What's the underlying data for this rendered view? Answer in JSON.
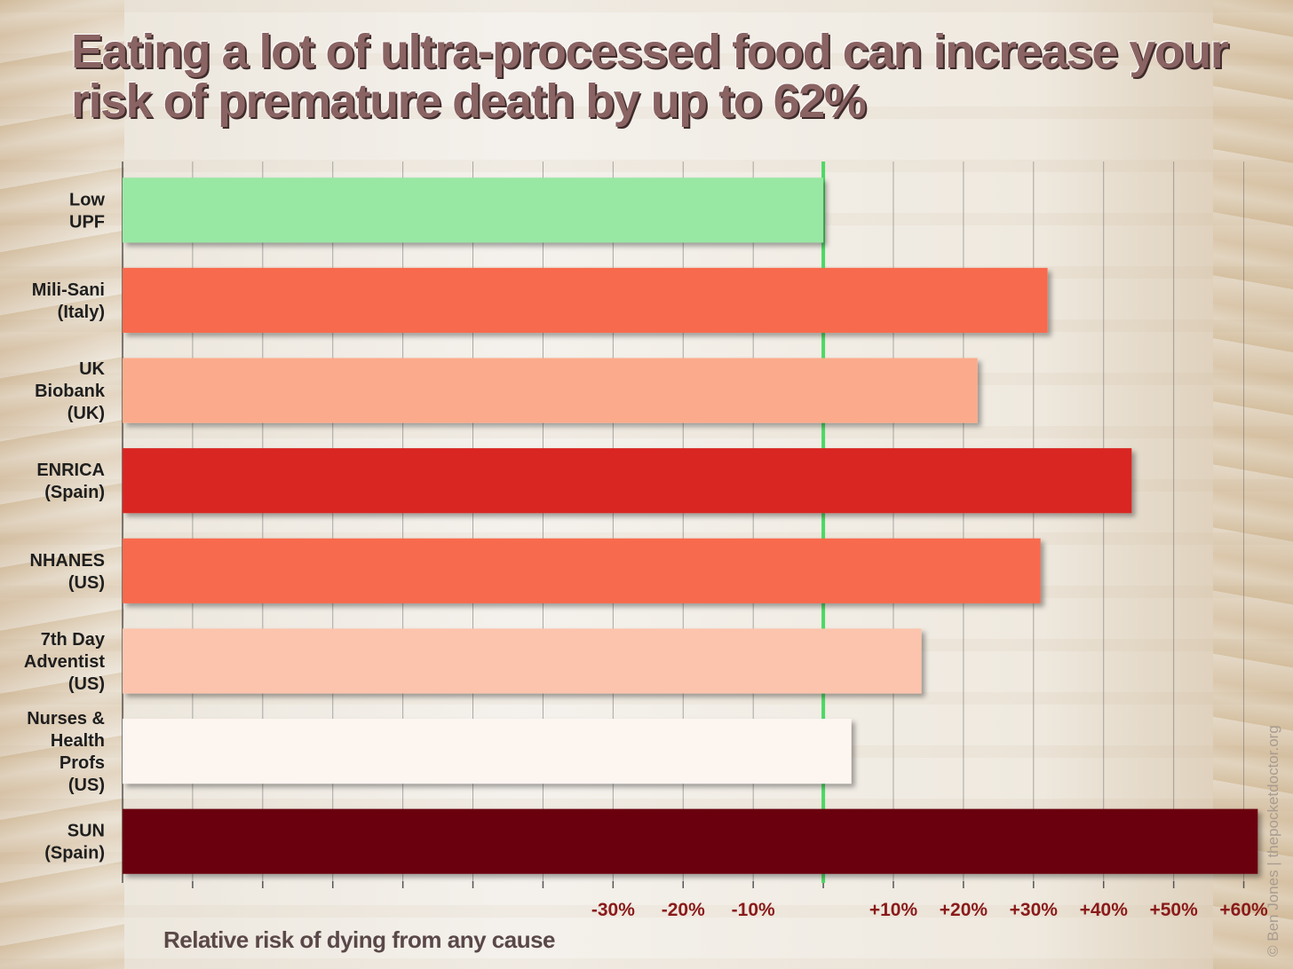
{
  "title": "Eating a lot of ultra-processed food can increase your risk of premature death by up to 62%",
  "credit": "© Ben Jones | thepocketdoctor.org",
  "chart_data": {
    "type": "bar",
    "orientation": "horizontal",
    "title": "Eating a lot of ultra-processed food can increase your risk of premature death by up to 62%",
    "xlabel": "Relative risk of dying from any cause",
    "ylabel": "",
    "xlim": [
      -100,
      65
    ],
    "baseline": 0,
    "baseline_color": "#4cd964",
    "grid": true,
    "tick_values": [
      -30,
      -20,
      -10,
      10,
      20,
      30,
      40,
      50,
      60
    ],
    "tick_labels": [
      "-30%",
      "-20%",
      "-10%",
      "+10%",
      "+20%",
      "+30%",
      "+40%",
      "+50%",
      "+60%"
    ],
    "categories": [
      [
        "Low",
        "UPF"
      ],
      [
        "Mili-Sani",
        "(Italy)"
      ],
      [
        "UK",
        "Biobank",
        "(UK)"
      ],
      [
        "ENRICA",
        "(Spain)"
      ],
      [
        "NHANES",
        "(US)"
      ],
      [
        "7th Day",
        "Adventist",
        "(US)"
      ],
      [
        "Nurses &",
        "Health",
        "Profs",
        "(US)"
      ],
      [
        "SUN",
        "(Spain)"
      ]
    ],
    "values": [
      0,
      32,
      22,
      44,
      31,
      14,
      4,
      62
    ],
    "colors": [
      "#98e8a4",
      "#f86a4e",
      "#fbab8b",
      "#d92523",
      "#f86a4e",
      "#fcc4ad",
      "#fdf5f0",
      "#6a000f"
    ]
  }
}
